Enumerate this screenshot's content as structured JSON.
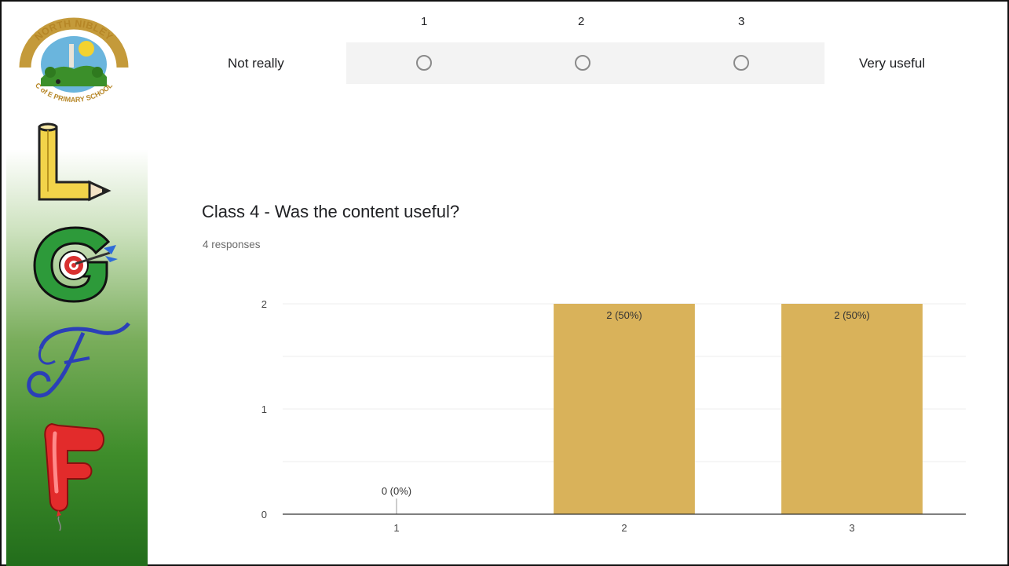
{
  "sidebar": {
    "logo_text_top": "NORTH NIBLEY",
    "logo_text_bottom": "C of E PRIMARY SCHOOL",
    "letters": [
      "L",
      "G",
      "F",
      "F"
    ]
  },
  "scale_question": {
    "numbers": [
      "1",
      "2",
      "3"
    ],
    "low_label": "Not really",
    "high_label": "Very useful"
  },
  "summary": {
    "title": "Class 4 - Was the content useful?",
    "responses": "4 responses"
  },
  "colors": {
    "bar": "#d9b25a",
    "grid": "#ececec",
    "axis": "#333333"
  },
  "chart_data": {
    "type": "bar",
    "categories": [
      "1",
      "2",
      "3"
    ],
    "values": [
      0,
      2,
      2
    ],
    "data_labels": [
      "0 (0%)",
      "2 (50%)",
      "2 (50%)"
    ],
    "title": "Class 4 - Was the content useful?",
    "xlabel": "",
    "ylabel": "",
    "ylim": [
      0,
      2
    ],
    "yticks": [
      "0",
      "1",
      "2"
    ],
    "grid": true,
    "legend": "none"
  }
}
